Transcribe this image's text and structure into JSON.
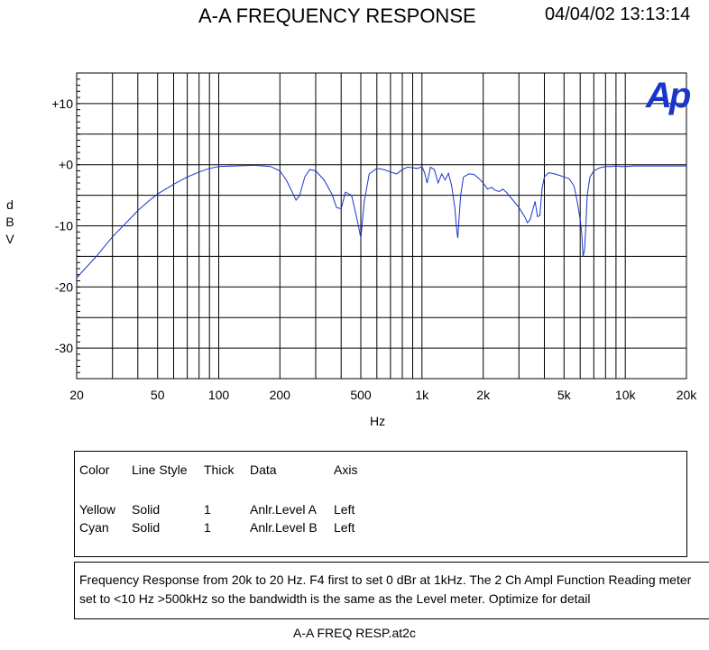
{
  "header": {
    "title": "A-A FREQUENCY RESPONSE",
    "timestamp": "04/04/02 13:13:14"
  },
  "logo": {
    "text": "Ap",
    "color": "#1a35c8"
  },
  "chart_data": {
    "type": "line",
    "title": "A-A FREQUENCY RESPONSE",
    "xlabel": "Hz",
    "ylabel": "dBV",
    "ylabel_chars": [
      "d",
      "B",
      "V"
    ],
    "x_scale": "log",
    "xlim": [
      20,
      20000
    ],
    "ylim": [
      -35,
      15
    ],
    "grid": true,
    "x_ticks": [
      {
        "v": 20,
        "label": "20"
      },
      {
        "v": 50,
        "label": "50"
      },
      {
        "v": 100,
        "label": "100"
      },
      {
        "v": 200,
        "label": "200"
      },
      {
        "v": 500,
        "label": "500"
      },
      {
        "v": 1000,
        "label": "1k"
      },
      {
        "v": 2000,
        "label": "2k"
      },
      {
        "v": 5000,
        "label": "5k"
      },
      {
        "v": 10000,
        "label": "10k"
      },
      {
        "v": 20000,
        "label": "20k"
      }
    ],
    "y_ticks": [
      {
        "v": 10,
        "label": "+10"
      },
      {
        "v": 0,
        "label": "+0"
      },
      {
        "v": -10,
        "label": "-10"
      },
      {
        "v": -20,
        "label": "-20"
      },
      {
        "v": -30,
        "label": "-30"
      }
    ],
    "series": [
      {
        "color": "#1a35c8",
        "x": [
          20,
          22,
          25,
          28,
          30,
          35,
          40,
          45,
          50,
          60,
          70,
          80,
          90,
          100,
          120,
          150,
          180,
          200,
          215,
          230,
          240,
          250,
          265,
          280,
          300,
          330,
          360,
          380,
          400,
          420,
          450,
          480,
          500,
          520,
          550,
          600,
          650,
          700,
          750,
          800,
          850,
          900,
          950,
          1000,
          1030,
          1060,
          1100,
          1150,
          1200,
          1250,
          1300,
          1350,
          1400,
          1450,
          1480,
          1500,
          1520,
          1550,
          1600,
          1700,
          1800,
          1900,
          2000,
          2100,
          2200,
          2300,
          2400,
          2500,
          2600,
          2800,
          3000,
          3200,
          3300,
          3400,
          3500,
          3600,
          3700,
          3800,
          3900,
          4000,
          4200,
          4500,
          4800,
          5000,
          5300,
          5600,
          5800,
          6000,
          6100,
          6200,
          6300,
          6400,
          6500,
          6700,
          7000,
          7500,
          8000,
          8500,
          9000,
          9500,
          10000,
          11000,
          12000,
          14000,
          16000,
          18000,
          20000
        ],
        "y": [
          -18.5,
          -17,
          -15,
          -13,
          -11.8,
          -9.5,
          -7.5,
          -6,
          -4.8,
          -3.2,
          -2,
          -1.2,
          -0.6,
          -0.3,
          -0.2,
          -0.1,
          -0.3,
          -1,
          -2.5,
          -4.5,
          -5.8,
          -5,
          -2,
          -0.8,
          -1,
          -2.5,
          -4.8,
          -7,
          -7.2,
          -4.5,
          -5,
          -9,
          -12,
          -6,
          -1.5,
          -0.6,
          -0.8,
          -1.2,
          -1.5,
          -0.8,
          -0.4,
          -0.5,
          -0.6,
          -0.3,
          -1.3,
          -3,
          -0.4,
          -0.8,
          -3,
          -1.5,
          -2.5,
          -1.4,
          -3.5,
          -7,
          -10.5,
          -12,
          -9,
          -5,
          -2,
          -1.5,
          -1.6,
          -2.2,
          -3,
          -4,
          -3.7,
          -4.2,
          -4.4,
          -4,
          -4.5,
          -5.8,
          -7,
          -8.5,
          -9.5,
          -9,
          -7.5,
          -6,
          -8.5,
          -8.3,
          -3.8,
          -2,
          -1.3,
          -1.5,
          -1.8,
          -2,
          -2.3,
          -3.5,
          -6,
          -9,
          -11,
          -15,
          -14,
          -10,
          -5,
          -2,
          -1,
          -0.5,
          -0.3,
          -0.3,
          -0.2,
          -0.3,
          -0.3,
          -0.2,
          -0.2,
          -0.2,
          -0.2,
          -0.2,
          -0.2
        ]
      }
    ]
  },
  "legend": {
    "headers": [
      "Color",
      "Line Style",
      "Thick",
      "Data",
      "Axis"
    ],
    "rows": [
      [
        "Yellow",
        "Solid",
        "1",
        "Anlr.Level A",
        "Left"
      ],
      [
        "Cyan",
        "Solid",
        "1",
        "Anlr.Level B",
        "Left"
      ]
    ]
  },
  "notes": [
    "Frequency Response from 20k to 20 Hz.  F4 first to set 0 dBr at 1kHz.  The 2 Ch Ampl Function Reading meter",
    "set to <10 Hz  >500kHz so the bandwidth is the same as the Level meter.  Optimize for detail"
  ],
  "footer": {
    "filename": "A-A FREQ RESP.at2c"
  }
}
